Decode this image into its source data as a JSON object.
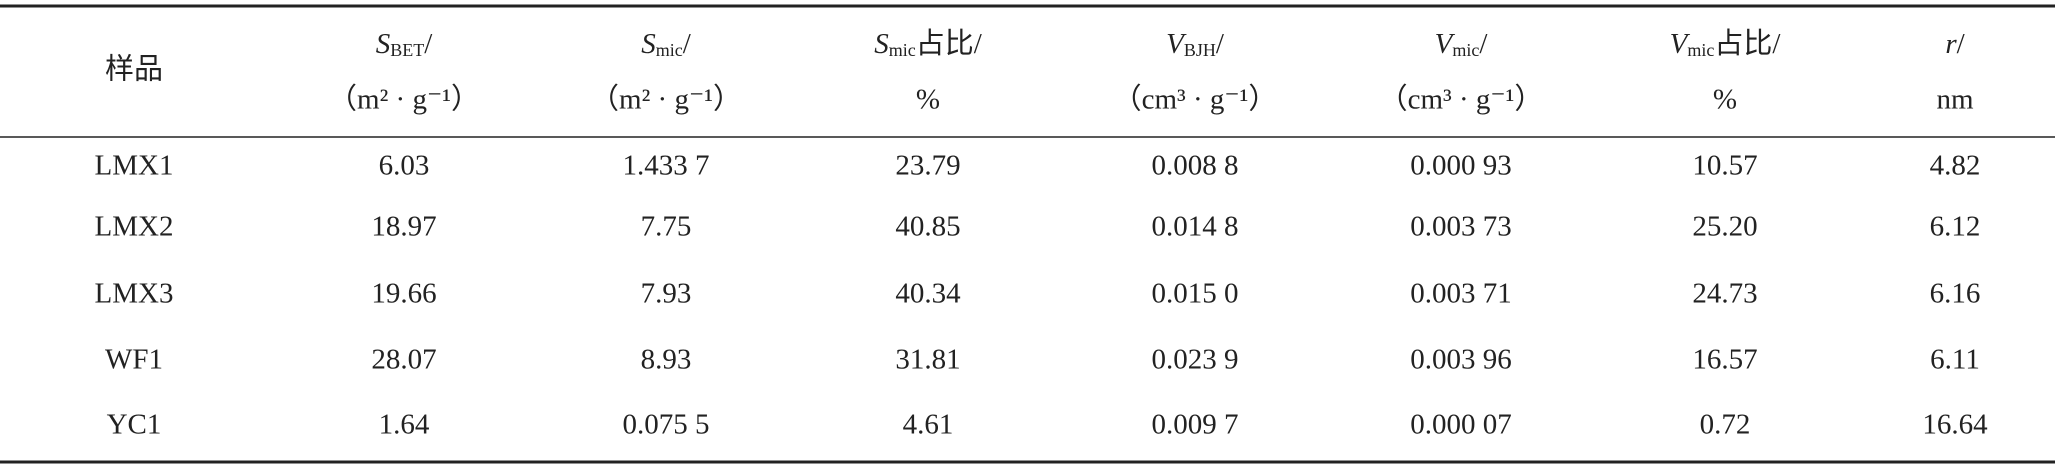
{
  "table": {
    "header": [
      {
        "label": "样品"
      },
      {
        "var": "S",
        "sub": "BET",
        "tail": "/",
        "unit": "（m² · g⁻¹）"
      },
      {
        "var": "S",
        "sub": "mic",
        "tail": "/",
        "unit": "（m² · g⁻¹）"
      },
      {
        "var": "S",
        "sub": "mic",
        "tail": "占比/",
        "unit": "%"
      },
      {
        "var": "V",
        "sub": "BJH",
        "tail": "/",
        "unit": "（cm³ · g⁻¹）"
      },
      {
        "var": "V",
        "sub": "mic",
        "tail": "/",
        "unit": "（cm³ · g⁻¹）"
      },
      {
        "var": "V",
        "sub": "mic",
        "tail": "占比/",
        "unit": "%"
      },
      {
        "var": "r",
        "tail": "/",
        "unit": "nm"
      }
    ],
    "rows": [
      [
        "LMX1",
        "6.03",
        "1.433 7",
        "23.79",
        "0.008 8",
        "0.000 93",
        "10.57",
        "4.82"
      ],
      [
        "LMX2",
        "18.97",
        "7.75",
        "40.85",
        "0.014 8",
        "0.003 73",
        "25.20",
        "6.12"
      ],
      [
        "LMX3",
        "19.66",
        "7.93",
        "40.34",
        "0.015 0",
        "0.003 71",
        "24.73",
        "6.16"
      ],
      [
        "WF1",
        "28.07",
        "8.93",
        "31.81",
        "0.023 9",
        "0.003 96",
        "16.57",
        "6.11"
      ],
      [
        "YC1",
        "1.64",
        "0.075 5",
        "4.61",
        "0.009 7",
        "0.000 07",
        "0.72",
        "16.64"
      ]
    ]
  }
}
